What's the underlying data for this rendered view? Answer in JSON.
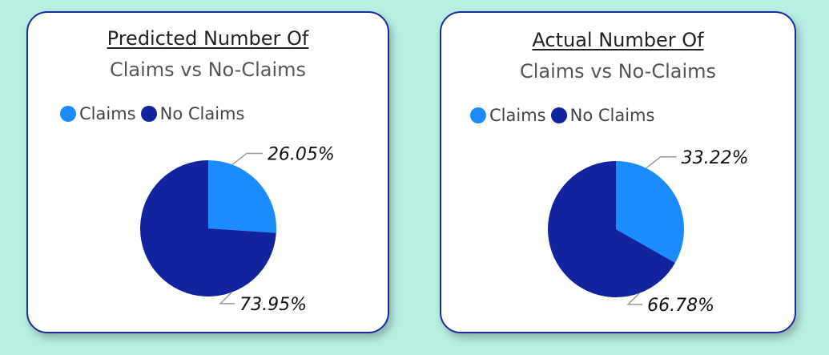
{
  "colors": {
    "claims": "#1a8cff",
    "no_claims": "#12239e",
    "leader": "#999999"
  },
  "chart_data": [
    {
      "type": "pie",
      "title": "Predicted Number Of",
      "subtitle": "Claims vs No-Claims",
      "legend": [
        "Claims",
        "No Claims"
      ],
      "legend_position": "top-left",
      "categories": [
        "Claims",
        "No Claims"
      ],
      "values": [
        26.05,
        73.95
      ],
      "labels": [
        "26.05%",
        "73.95%"
      ]
    },
    {
      "type": "pie",
      "title": "Actual Number Of",
      "subtitle": "Claims vs No-Claims",
      "legend": [
        "Claims",
        "No Claims"
      ],
      "legend_position": "top-left",
      "categories": [
        "Claims",
        "No Claims"
      ],
      "values": [
        33.22,
        66.78
      ],
      "labels": [
        "33.22%",
        "66.78%"
      ]
    }
  ]
}
